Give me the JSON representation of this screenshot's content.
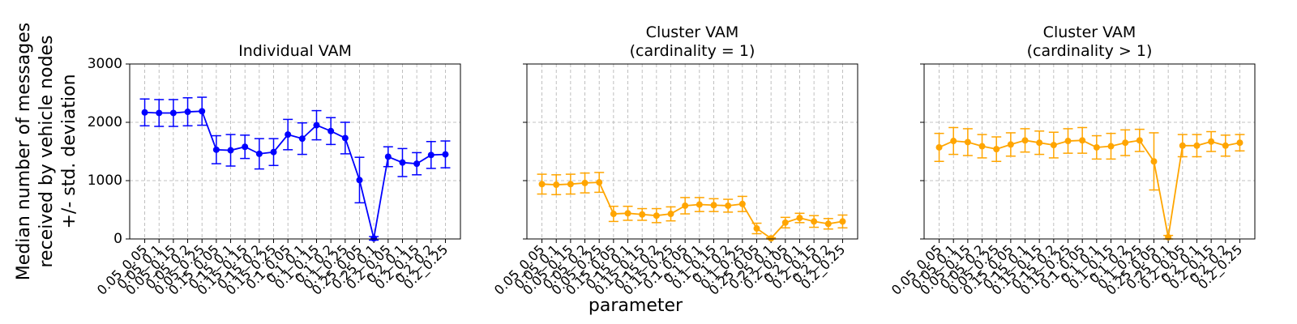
{
  "xlabel": "parameter",
  "ylabel": [
    "Median number of messages",
    "received by vehicle nodes",
    "+/- std. deviation"
  ],
  "chart_data": [
    {
      "type": "errorbar",
      "title": [
        "Individual VAM"
      ],
      "color": "#0000ff",
      "grid": true,
      "categories": [
        "0.05_0.05",
        "0.05_0.1",
        "0.05_0.15",
        "0.05_0.2",
        "0.05_0.25",
        "0.15_0.05",
        "0.15_0.1",
        "0.15_0.15",
        "0.15_0.2",
        "0.15_0.25",
        "0.1_0.05",
        "0.1_0.1",
        "0.1_0.15",
        "0.1_0.2",
        "0.1_0.25",
        "0.25_0.05",
        "0.25_0.1",
        "0.2_0.05",
        "0.2_0.1",
        "0.2_0.15",
        "0.2_0.2",
        "0.2_0.25"
      ],
      "values": [
        2170,
        2160,
        2160,
        2180,
        2190,
        1530,
        1520,
        1580,
        1460,
        1490,
        1790,
        1720,
        1950,
        1850,
        1730,
        1010,
        10,
        1410,
        1310,
        1290,
        1440,
        1450
      ],
      "errors": [
        230,
        230,
        230,
        240,
        240,
        240,
        270,
        200,
        260,
        230,
        260,
        270,
        250,
        230,
        270,
        390,
        30,
        170,
        240,
        190,
        230,
        230
      ],
      "ylim": [
        0,
        3000
      ],
      "yticks": [
        0,
        1000,
        2000,
        3000
      ]
    },
    {
      "type": "errorbar",
      "title": [
        "Cluster VAM",
        "(cardinality = 1)"
      ],
      "color": "#ffa500",
      "grid": true,
      "categories": [
        "0.05_0.05",
        "0.05_0.1",
        "0.05_0.15",
        "0.05_0.2",
        "0.05_0.25",
        "0.15_0.05",
        "0.15_0.1",
        "0.15_0.15",
        "0.15_0.2",
        "0.15_0.25",
        "0.1_0.05",
        "0.1_0.1",
        "0.1_0.15",
        "0.1_0.2",
        "0.1_0.25",
        "0.25_0.05",
        "0.25_0.1",
        "0.2_0.05",
        "0.2_0.1",
        "0.2_0.15",
        "0.2_0.2",
        "0.2_0.25"
      ],
      "values": [
        940,
        930,
        940,
        960,
        970,
        430,
        440,
        420,
        400,
        430,
        570,
        590,
        580,
        570,
        600,
        180,
        10,
        280,
        360,
        300,
        260,
        300
      ],
      "errors": [
        170,
        170,
        170,
        170,
        170,
        130,
        120,
        100,
        120,
        120,
        140,
        120,
        110,
        110,
        130,
        90,
        10,
        90,
        80,
        100,
        90,
        110
      ],
      "ylim": [
        0,
        3000
      ],
      "yticks": [
        0,
        1000,
        2000,
        3000
      ]
    },
    {
      "type": "errorbar",
      "title": [
        "Cluster VAM",
        "(cardinality > 1)"
      ],
      "color": "#ffa500",
      "grid": true,
      "categories": [
        "0.05_0.05",
        "0.05_0.1",
        "0.05_0.15",
        "0.05_0.2",
        "0.05_0.25",
        "0.15_0.05",
        "0.15_0.1",
        "0.15_0.15",
        "0.15_0.2",
        "0.15_0.25",
        "0.1_0.05",
        "0.1_0.1",
        "0.1_0.15",
        "0.1_0.2",
        "0.1_0.25",
        "0.25_0.05",
        "0.25_0.1",
        "0.2_0.05",
        "0.2_0.1",
        "0.2_0.15",
        "0.2_0.2",
        "0.2_0.25"
      ],
      "values": [
        1570,
        1680,
        1660,
        1590,
        1540,
        1620,
        1690,
        1650,
        1610,
        1680,
        1690,
        1570,
        1590,
        1650,
        1690,
        1330,
        30,
        1600,
        1600,
        1670,
        1600,
        1650
      ],
      "errors": [
        240,
        230,
        230,
        200,
        210,
        200,
        200,
        200,
        220,
        210,
        220,
        200,
        220,
        220,
        190,
        490,
        30,
        190,
        190,
        170,
        180,
        140
      ],
      "ylim": [
        0,
        3000
      ],
      "yticks": [
        0,
        1000,
        2000,
        3000
      ]
    }
  ]
}
